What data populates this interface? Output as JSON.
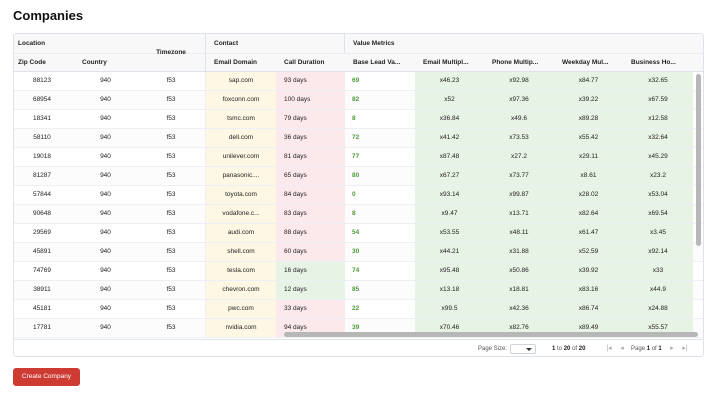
{
  "page": {
    "title": "Companies"
  },
  "header": {
    "groups": {
      "location": "Location",
      "contact": "Contact",
      "value_metrics": "Value Metrics"
    },
    "columns": {
      "zip": "Zip Code",
      "country": "Country",
      "timezone": "Timezone",
      "email": "Email Domain",
      "duration": "Call Duration",
      "lead": "Base Lead Va...",
      "email_mult": "Email Multipl...",
      "phone_mult": "Phone Multip...",
      "weekday_mult": "Weekday Mul...",
      "business_hours": "Business Ho..."
    }
  },
  "rows": [
    {
      "zip": "88123",
      "country": "940",
      "tz": "f53",
      "email": "sap.com",
      "duration": "93 days",
      "lead": "69",
      "em": "x46.23",
      "ph": "x92.98",
      "wd": "x84.77",
      "bh": "x32.65"
    },
    {
      "zip": "68954",
      "country": "940",
      "tz": "f53",
      "email": "foxconn.com",
      "duration": "100 days",
      "lead": "82",
      "em": "x52",
      "ph": "x97.36",
      "wd": "x39.22",
      "bh": "x67.59"
    },
    {
      "zip": "18341",
      "country": "940",
      "tz": "f53",
      "email": "tsmc.com",
      "duration": "79 days",
      "lead": "8",
      "em": "x36.84",
      "ph": "x49.6",
      "wd": "x89.28",
      "bh": "x12.58"
    },
    {
      "zip": "58110",
      "country": "940",
      "tz": "f53",
      "email": "dell.com",
      "duration": "36 days",
      "lead": "72",
      "em": "x41.42",
      "ph": "x73.53",
      "wd": "x55.42",
      "bh": "x32.64"
    },
    {
      "zip": "19018",
      "country": "940",
      "tz": "f53",
      "email": "unilever.com",
      "duration": "81 days",
      "lead": "77",
      "em": "x87.48",
      "ph": "x27.2",
      "wd": "x29.11",
      "bh": "x45.29"
    },
    {
      "zip": "81287",
      "country": "940",
      "tz": "f53",
      "email": "panasonic....",
      "duration": "65 days",
      "lead": "80",
      "em": "x67.27",
      "ph": "x73.77",
      "wd": "x8.61",
      "bh": "x23.2"
    },
    {
      "zip": "57844",
      "country": "940",
      "tz": "f53",
      "email": "toyota.com",
      "duration": "84 days",
      "lead": "0",
      "em": "x93.14",
      "ph": "x99.87",
      "wd": "x28.02",
      "bh": "x53.04"
    },
    {
      "zip": "90648",
      "country": "940",
      "tz": "f53",
      "email": "vodafone.c...",
      "duration": "83 days",
      "lead": "8",
      "em": "x9.47",
      "ph": "x13.71",
      "wd": "x82.64",
      "bh": "x69.54"
    },
    {
      "zip": "29569",
      "country": "940",
      "tz": "f53",
      "email": "audi.com",
      "duration": "88 days",
      "lead": "54",
      "em": "x53.55",
      "ph": "x48.11",
      "wd": "x61.47",
      "bh": "x3.45"
    },
    {
      "zip": "45891",
      "country": "940",
      "tz": "f53",
      "email": "shell.com",
      "duration": "60 days",
      "lead": "30",
      "em": "x44.21",
      "ph": "x31.88",
      "wd": "x52.59",
      "bh": "x92.14"
    },
    {
      "zip": "74769",
      "country": "940",
      "tz": "f53",
      "email": "tesla.com",
      "duration": "16 days",
      "lead": "74",
      "em": "x95.48",
      "ph": "x50.86",
      "wd": "x39.92",
      "bh": "x33"
    },
    {
      "zip": "38911",
      "country": "940",
      "tz": "f53",
      "email": "chevron.com",
      "duration": "12 days",
      "lead": "85",
      "em": "x13.18",
      "ph": "x18.81",
      "wd": "x83.16",
      "bh": "x44.9"
    },
    {
      "zip": "45181",
      "country": "940",
      "tz": "f53",
      "email": "pwc.com",
      "duration": "33 days",
      "lead": "22",
      "em": "x99.5",
      "ph": "x42.36",
      "wd": "x86.74",
      "bh": "x24.88"
    },
    {
      "zip": "17781",
      "country": "940",
      "tz": "f53",
      "email": "nvidia.com",
      "duration": "94 days",
      "lead": "39",
      "em": "x70.46",
      "ph": "x82.76",
      "wd": "x89.49",
      "bh": "x55.57"
    }
  ],
  "footer": {
    "page_size_label": "Page Size:",
    "page_size_value": "",
    "range_start": "1",
    "to_word": "to",
    "range_end": "20",
    "of_word": "of",
    "total": "20",
    "page_word": "Page",
    "current_page": "1",
    "total_pages": "1",
    "first_glyph": "|◂",
    "prev_glyph": "◂",
    "next_glyph": "▸",
    "last_glyph": "▸|"
  },
  "actions": {
    "create_label": "Create Company"
  },
  "colors": {
    "email_bg": "#fdf7e3",
    "duration_long_bg": "#fce9ec",
    "duration_short_bg": "#e7f3e4",
    "metric_bg": "#e7f3e4",
    "lead_text": "#4c9a38",
    "button_bg": "#cd3b33"
  }
}
